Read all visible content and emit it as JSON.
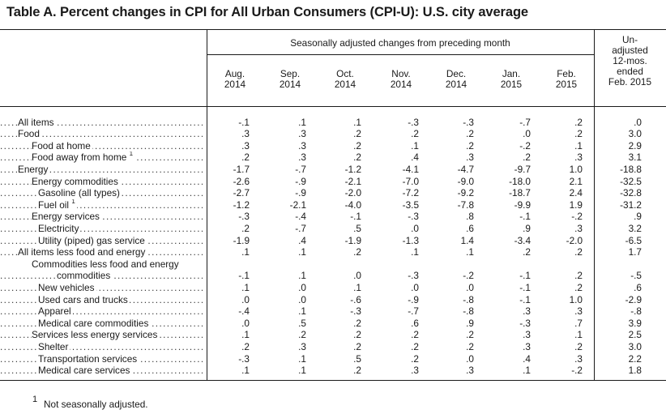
{
  "title": "Table A. Percent changes in CPI for All Urban Consumers (CPI-U): U.S. city average",
  "header": {
    "group_label": "Seasonally adjusted changes from preceding month",
    "columns": [
      {
        "line1": "Aug.",
        "line2": "2014"
      },
      {
        "line1": "Sep.",
        "line2": "2014"
      },
      {
        "line1": "Oct.",
        "line2": "2014"
      },
      {
        "line1": "Nov.",
        "line2": "2014"
      },
      {
        "line1": "Dec.",
        "line2": "2014"
      },
      {
        "line1": "Jan.",
        "line2": "2015"
      },
      {
        "line1": "Feb.",
        "line2": "2015"
      }
    ],
    "unadjusted": [
      "Un-",
      "adjusted",
      "12-mos.",
      "ended",
      "Feb. 2015"
    ]
  },
  "rows": [
    {
      "label": "All items",
      "indent": 0,
      "values": [
        "-.1",
        ".1",
        ".1",
        "-.3",
        "-.3",
        "-.7",
        ".2",
        ".0"
      ]
    },
    {
      "label": "Food",
      "indent": 0,
      "values": [
        ".3",
        ".3",
        ".2",
        ".2",
        ".2",
        ".0",
        ".2",
        "3.0"
      ]
    },
    {
      "label": "Food at home",
      "indent": 1,
      "values": [
        ".3",
        ".3",
        ".2",
        ".1",
        ".2",
        "-.2",
        ".1",
        "2.9"
      ]
    },
    {
      "label": "Food away from home",
      "indent": 1,
      "footnote": "1",
      "values": [
        ".2",
        ".3",
        ".2",
        ".4",
        ".3",
        ".2",
        ".3",
        "3.1"
      ]
    },
    {
      "label": "Energy",
      "indent": 0,
      "values": [
        "-1.7",
        "-.7",
        "-1.2",
        "-4.1",
        "-4.7",
        "-9.7",
        "1.0",
        "-18.8"
      ]
    },
    {
      "label": "Energy commodities",
      "indent": 1,
      "values": [
        "-2.6",
        "-.9",
        "-2.1",
        "-7.0",
        "-9.0",
        "-18.0",
        "2.1",
        "-32.5"
      ]
    },
    {
      "label": "Gasoline (all types)",
      "indent": 2,
      "values": [
        "-2.7",
        "-.9",
        "-2.0",
        "-7.2",
        "-9.2",
        "-18.7",
        "2.4",
        "-32.8"
      ]
    },
    {
      "label": "Fuel oil",
      "indent": 2,
      "footnote": "1",
      "values": [
        "-1.2",
        "-2.1",
        "-4.0",
        "-3.5",
        "-7.8",
        "-9.9",
        "1.9",
        "-31.2"
      ]
    },
    {
      "label": "Energy services",
      "indent": 1,
      "values": [
        "-.3",
        "-.4",
        "-.1",
        "-.3",
        ".8",
        "-.1",
        "-.2",
        ".9"
      ]
    },
    {
      "label": "Electricity",
      "indent": 2,
      "values": [
        ".2",
        "-.7",
        ".5",
        ".0",
        ".6",
        ".9",
        ".3",
        "3.2"
      ]
    },
    {
      "label": "Utility (piped) gas service",
      "indent": 2,
      "values": [
        "-1.9",
        ".4",
        "-1.9",
        "-1.3",
        "1.4",
        "-3.4",
        "-2.0",
        "-6.5"
      ]
    },
    {
      "label": "All items less food and energy",
      "indent": 0,
      "values": [
        ".1",
        ".1",
        ".2",
        ".1",
        ".1",
        ".2",
        ".2",
        "1.7"
      ]
    },
    {
      "label": "Commodities less food and energy",
      "indent": 1,
      "nodots": true,
      "values": []
    },
    {
      "label": "commodities",
      "indent": 3,
      "values": [
        "-.1",
        ".1",
        ".0",
        "-.3",
        "-.2",
        "-.1",
        ".2",
        "-.5"
      ]
    },
    {
      "label": "New vehicles",
      "indent": 2,
      "values": [
        ".1",
        ".0",
        ".1",
        ".0",
        ".0",
        "-.1",
        ".2",
        ".6"
      ]
    },
    {
      "label": "Used cars and trucks",
      "indent": 2,
      "values": [
        ".0",
        ".0",
        "-.6",
        "-.9",
        "-.8",
        "-.1",
        "1.0",
        "-2.9"
      ]
    },
    {
      "label": "Apparel",
      "indent": 2,
      "values": [
        "-.4",
        ".1",
        "-.3",
        "-.7",
        "-.8",
        ".3",
        ".3",
        "-.8"
      ]
    },
    {
      "label": "Medical care commodities",
      "indent": 2,
      "values": [
        ".0",
        ".5",
        ".2",
        ".6",
        ".9",
        "-.3",
        ".7",
        "3.9"
      ]
    },
    {
      "label": "Services less energy services",
      "indent": 1,
      "values": [
        ".1",
        ".2",
        ".2",
        ".2",
        ".2",
        ".3",
        ".1",
        "2.5"
      ]
    },
    {
      "label": "Shelter",
      "indent": 2,
      "values": [
        ".2",
        ".3",
        ".2",
        ".2",
        ".2",
        ".3",
        ".2",
        "3.0"
      ]
    },
    {
      "label": "Transportation services",
      "indent": 2,
      "values": [
        "-.3",
        ".1",
        ".5",
        ".2",
        ".0",
        ".4",
        ".3",
        "2.2"
      ]
    },
    {
      "label": "Medical care services",
      "indent": 2,
      "values": [
        ".1",
        ".1",
        ".2",
        ".3",
        ".3",
        ".1",
        "-.2",
        "1.8"
      ]
    }
  ],
  "footnote": {
    "mark": "1",
    "text": "Not seasonally adjusted."
  }
}
